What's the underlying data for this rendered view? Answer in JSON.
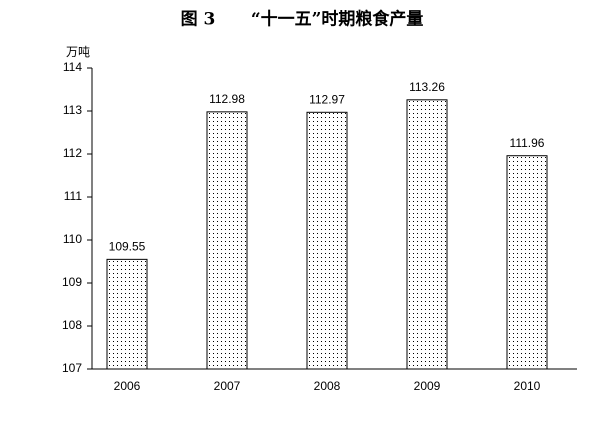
{
  "chart_data": {
    "type": "bar",
    "title": "图 3      “十一五”时期粮食产量",
    "y_unit": "万吨",
    "categories": [
      "2006",
      "2007",
      "2008",
      "2009",
      "2010"
    ],
    "values": [
      109.55,
      112.98,
      112.97,
      113.26,
      111.96
    ],
    "color": "#000000",
    "ylim": [
      107,
      114
    ],
    "yticks": [
      107,
      108,
      109,
      110,
      111,
      112,
      113,
      114
    ],
    "grid": false
  }
}
